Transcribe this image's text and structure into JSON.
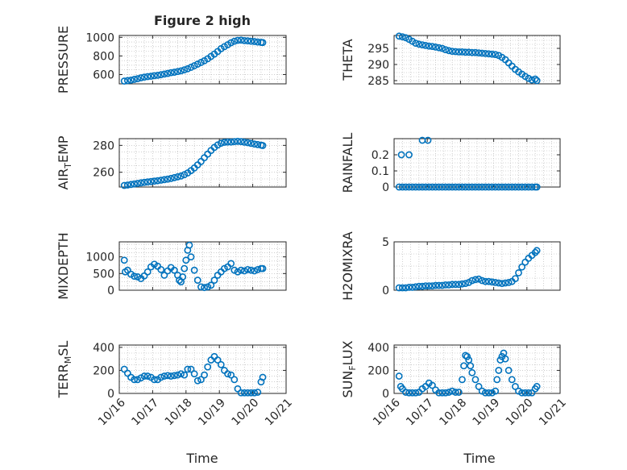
{
  "figure": {
    "title": "Figure 2 high",
    "xlabel": "Time",
    "colors": {
      "marker": "#0072BD",
      "axis": "#262626",
      "grid": "#b0b0b0",
      "background": "#ffffff"
    },
    "x_tick_labels": [
      "10/16",
      "10/17",
      "10/18",
      "10/19",
      "10/20",
      "10/21"
    ]
  },
  "chart_data": [
    {
      "type": "scatter",
      "name": "pressure",
      "title": "Figure 2 high",
      "xlabel": "",
      "ylabel": "PRESSURE",
      "ylim": [
        500,
        1020
      ],
      "yticks": [
        600,
        800,
        1000
      ],
      "ytick_labels": [
        "600",
        "800",
        "1000"
      ],
      "xlim": [
        16,
        21
      ],
      "grid": true,
      "x": [
        16.15,
        16.25,
        16.35,
        16.45,
        16.55,
        16.65,
        16.75,
        16.85,
        16.95,
        17.05,
        17.15,
        17.25,
        17.35,
        17.45,
        17.55,
        17.65,
        17.75,
        17.85,
        17.95,
        18.05,
        18.15,
        18.25,
        18.35,
        18.45,
        18.55,
        18.65,
        18.75,
        18.85,
        18.95,
        19.05,
        19.15,
        19.25,
        19.35,
        19.45,
        19.55,
        19.65,
        19.75,
        19.85,
        19.95,
        20.05,
        20.15,
        20.25,
        20.3
      ],
      "y": [
        530,
        535,
        540,
        548,
        555,
        565,
        572,
        578,
        582,
        588,
        592,
        598,
        605,
        612,
        620,
        625,
        632,
        640,
        650,
        662,
        678,
        695,
        712,
        730,
        748,
        770,
        795,
        820,
        848,
        878,
        900,
        920,
        942,
        958,
        968,
        970,
        965,
        962,
        958,
        955,
        950,
        946,
        944
      ]
    },
    {
      "type": "scatter",
      "name": "theta",
      "xlabel": "",
      "ylabel": "THETA",
      "ylim": [
        284,
        299
      ],
      "yticks": [
        285,
        290,
        295
      ],
      "ytick_labels": [
        "285",
        "290",
        "295"
      ],
      "xlim": [
        16,
        21
      ],
      "grid": true,
      "x": [
        16.15,
        16.25,
        16.35,
        16.45,
        16.55,
        16.65,
        16.75,
        16.85,
        16.95,
        17.05,
        17.15,
        17.25,
        17.35,
        17.45,
        17.55,
        17.65,
        17.75,
        17.85,
        17.95,
        18.05,
        18.15,
        18.25,
        18.35,
        18.45,
        18.55,
        18.65,
        18.75,
        18.85,
        18.95,
        19.05,
        19.15,
        19.25,
        19.35,
        19.45,
        19.55,
        19.65,
        19.75,
        19.85,
        19.95,
        20.05,
        20.15,
        20.25,
        20.3
      ],
      "y": [
        298.8,
        298.6,
        298.3,
        297.8,
        297.2,
        296.6,
        296.3,
        296.1,
        295.9,
        295.7,
        295.6,
        295.4,
        295.2,
        295.0,
        294.6,
        294.3,
        294.1,
        294.0,
        293.9,
        293.9,
        293.8,
        293.8,
        293.7,
        293.7,
        293.6,
        293.5,
        293.4,
        293.3,
        293.2,
        293.1,
        292.8,
        292.2,
        291.5,
        290.5,
        289.5,
        288.5,
        287.7,
        287.0,
        286.3,
        285.7,
        285.2,
        285.5,
        285.0
      ]
    },
    {
      "type": "scatter",
      "name": "air-temp",
      "xlabel": "",
      "ylabel": "AIR_TEMP",
      "ylabel_parts": [
        "AIR",
        "T",
        "EMP"
      ],
      "ylim": [
        249,
        285
      ],
      "yticks": [
        260,
        280
      ],
      "ytick_labels": [
        "260",
        "280"
      ],
      "xlim": [
        16,
        21
      ],
      "grid": true,
      "x": [
        16.15,
        16.25,
        16.35,
        16.45,
        16.55,
        16.65,
        16.75,
        16.85,
        16.95,
        17.05,
        17.15,
        17.25,
        17.35,
        17.45,
        17.55,
        17.65,
        17.75,
        17.85,
        17.95,
        18.05,
        18.15,
        18.25,
        18.35,
        18.45,
        18.55,
        18.65,
        18.75,
        18.85,
        18.95,
        19.05,
        19.15,
        19.25,
        19.35,
        19.45,
        19.55,
        19.65,
        19.75,
        19.85,
        19.95,
        20.05,
        20.15,
        20.25,
        20.3
      ],
      "y": [
        250.2,
        250.5,
        250.9,
        251.3,
        251.7,
        252.1,
        252.5,
        252.8,
        253.1,
        253.4,
        253.7,
        254.1,
        254.5,
        254.9,
        255.4,
        256.0,
        256.6,
        257.2,
        258.2,
        259.5,
        261.2,
        263.2,
        265.5,
        268.0,
        270.8,
        273.5,
        276.2,
        278.5,
        280.3,
        281.6,
        282.3,
        282.5,
        282.5,
        282.8,
        283.0,
        282.8,
        282.4,
        282.0,
        281.5,
        281.0,
        280.6,
        280.2,
        279.9
      ]
    },
    {
      "type": "scatter",
      "name": "rainfall",
      "xlabel": "",
      "ylabel": "RAINFALL",
      "ylim": [
        0,
        0.3
      ],
      "yticks": [
        0,
        0.1,
        0.2
      ],
      "ytick_labels": [
        "0",
        "0.1",
        "0.2"
      ],
      "xlim": [
        16,
        21
      ],
      "grid": true,
      "x": [
        16.15,
        16.25,
        16.35,
        16.45,
        16.55,
        16.65,
        16.75,
        16.85,
        16.95,
        17.05,
        17.15,
        17.25,
        17.35,
        17.45,
        17.55,
        17.65,
        17.75,
        17.85,
        17.95,
        18.05,
        18.15,
        18.25,
        18.35,
        18.45,
        18.55,
        18.65,
        18.75,
        18.85,
        18.95,
        19.05,
        19.15,
        19.25,
        19.35,
        19.45,
        19.55,
        19.65,
        19.75,
        19.85,
        19.95,
        20.05,
        20.15,
        20.25,
        20.3,
        16.22,
        16.45,
        16.85,
        17.02
      ],
      "y": [
        0,
        0,
        0,
        0,
        0,
        0,
        0,
        0,
        0,
        0,
        0,
        0,
        0,
        0,
        0,
        0,
        0,
        0,
        0,
        0,
        0,
        0,
        0,
        0,
        0,
        0,
        0,
        0,
        0,
        0,
        0,
        0,
        0,
        0,
        0,
        0,
        0,
        0,
        0,
        0,
        0,
        0,
        0,
        0.2,
        0.2,
        0.29,
        0.29
      ]
    },
    {
      "type": "scatter",
      "name": "mixdepth",
      "xlabel": "",
      "ylabel": "MIXDEPTH",
      "ylim": [
        0,
        1450
      ],
      "yticks": [
        0,
        500,
        1000
      ],
      "ytick_labels": [
        "0",
        "500",
        "1000"
      ],
      "xlim": [
        16,
        21
      ],
      "grid": true,
      "x": [
        16.15,
        16.18,
        16.25,
        16.35,
        16.45,
        16.55,
        16.65,
        16.75,
        16.85,
        16.95,
        17.05,
        17.15,
        17.25,
        17.35,
        17.45,
        17.55,
        17.65,
        17.75,
        17.8,
        17.85,
        17.9,
        17.95,
        18.0,
        18.05,
        18.1,
        18.15,
        18.25,
        18.35,
        18.45,
        18.55,
        18.65,
        18.75,
        18.85,
        18.95,
        19.05,
        19.15,
        19.25,
        19.35,
        19.45,
        19.55,
        19.65,
        19.75,
        19.85,
        19.95,
        20.05,
        20.15,
        20.25,
        20.3
      ],
      "y": [
        900,
        550,
        600,
        480,
        420,
        400,
        350,
        430,
        550,
        700,
        780,
        720,
        620,
        450,
        580,
        680,
        600,
        450,
        300,
        250,
        400,
        650,
        900,
        1200,
        1350,
        1000,
        600,
        300,
        100,
        80,
        100,
        150,
        300,
        450,
        550,
        650,
        700,
        800,
        600,
        550,
        600,
        580,
        620,
        600,
        580,
        620,
        650,
        650
      ]
    },
    {
      "type": "scatter",
      "name": "h2omixra",
      "xlabel": "",
      "ylabel": "H2OMIXRA",
      "ylim": [
        0,
        5
      ],
      "yticks": [
        0,
        5
      ],
      "ytick_labels": [
        "0",
        "5"
      ],
      "xlim": [
        16,
        21
      ],
      "grid": true,
      "x": [
        16.15,
        16.25,
        16.35,
        16.45,
        16.55,
        16.65,
        16.75,
        16.85,
        16.95,
        17.05,
        17.15,
        17.25,
        17.35,
        17.45,
        17.55,
        17.65,
        17.75,
        17.85,
        17.95,
        18.05,
        18.15,
        18.25,
        18.35,
        18.45,
        18.55,
        18.65,
        18.75,
        18.85,
        18.95,
        19.05,
        19.15,
        19.25,
        19.35,
        19.45,
        19.55,
        19.65,
        19.75,
        19.85,
        19.95,
        20.05,
        20.15,
        20.25,
        20.3
      ],
      "y": [
        0.25,
        0.25,
        0.25,
        0.3,
        0.3,
        0.35,
        0.4,
        0.4,
        0.45,
        0.45,
        0.45,
        0.5,
        0.5,
        0.5,
        0.55,
        0.55,
        0.6,
        0.6,
        0.6,
        0.65,
        0.7,
        0.8,
        1.0,
        1.1,
        1.15,
        1.0,
        0.9,
        0.9,
        0.85,
        0.8,
        0.75,
        0.7,
        0.75,
        0.8,
        0.9,
        1.2,
        1.8,
        2.4,
        2.9,
        3.3,
        3.6,
        3.9,
        4.1
      ]
    },
    {
      "type": "scatter",
      "name": "terr-msl",
      "xlabel": "Time",
      "ylabel": "TERR_MSL",
      "ylabel_parts": [
        "TERR",
        "M",
        "SL"
      ],
      "ylim": [
        0,
        420
      ],
      "yticks": [
        0,
        200,
        400
      ],
      "ytick_labels": [
        "0",
        "200",
        "400"
      ],
      "xlim": [
        16,
        21
      ],
      "grid": true,
      "xtick_labels": [
        "10/16",
        "10/17",
        "10/18",
        "10/19",
        "10/20",
        "10/21"
      ],
      "x": [
        16.15,
        16.25,
        16.35,
        16.45,
        16.55,
        16.65,
        16.75,
        16.85,
        16.95,
        17.05,
        17.15,
        17.25,
        17.35,
        17.45,
        17.55,
        17.65,
        17.75,
        17.85,
        17.95,
        18.05,
        18.15,
        18.25,
        18.35,
        18.45,
        18.55,
        18.65,
        18.75,
        18.85,
        18.95,
        19.05,
        19.15,
        19.25,
        19.35,
        19.45,
        19.55,
        19.65,
        19.75,
        19.85,
        19.95,
        20.05,
        20.15,
        20.25,
        20.3
      ],
      "y": [
        210,
        175,
        140,
        120,
        120,
        135,
        150,
        150,
        140,
        120,
        120,
        140,
        150,
        155,
        150,
        155,
        160,
        170,
        160,
        210,
        210,
        170,
        110,
        120,
        160,
        230,
        290,
        320,
        290,
        250,
        200,
        170,
        160,
        120,
        40,
        5,
        5,
        5,
        5,
        5,
        10,
        100,
        140
      ]
    },
    {
      "type": "scatter",
      "name": "sun-flux",
      "xlabel": "Time",
      "ylabel": "SUN_FLUX",
      "ylabel_parts": [
        "SUN",
        "F",
        "LUX"
      ],
      "ylim": [
        0,
        420
      ],
      "yticks": [
        0,
        200,
        400
      ],
      "ytick_labels": [
        "0",
        "200",
        "400"
      ],
      "xlim": [
        16,
        21
      ],
      "grid": true,
      "xtick_labels": [
        "10/16",
        "10/17",
        "10/18",
        "10/19",
        "10/20",
        "10/21"
      ],
      "x": [
        16.15,
        16.2,
        16.25,
        16.35,
        16.45,
        16.55,
        16.65,
        16.75,
        16.85,
        16.95,
        17.05,
        17.15,
        17.25,
        17.35,
        17.45,
        17.55,
        17.65,
        17.75,
        17.85,
        17.95,
        18.05,
        18.1,
        18.15,
        18.2,
        18.25,
        18.3,
        18.35,
        18.45,
        18.55,
        18.65,
        18.75,
        18.85,
        18.95,
        19.05,
        19.1,
        19.15,
        19.2,
        19.25,
        19.3,
        19.35,
        19.45,
        19.55,
        19.65,
        19.75,
        19.85,
        19.95,
        20.05,
        20.15,
        20.25,
        20.3
      ],
      "y": [
        150,
        60,
        40,
        10,
        5,
        5,
        5,
        10,
        40,
        60,
        90,
        70,
        30,
        5,
        5,
        5,
        10,
        20,
        10,
        10,
        120,
        240,
        330,
        320,
        290,
        240,
        180,
        120,
        60,
        20,
        5,
        5,
        5,
        20,
        120,
        200,
        290,
        320,
        350,
        300,
        200,
        120,
        60,
        20,
        5,
        5,
        5,
        5,
        40,
        60
      ]
    }
  ]
}
